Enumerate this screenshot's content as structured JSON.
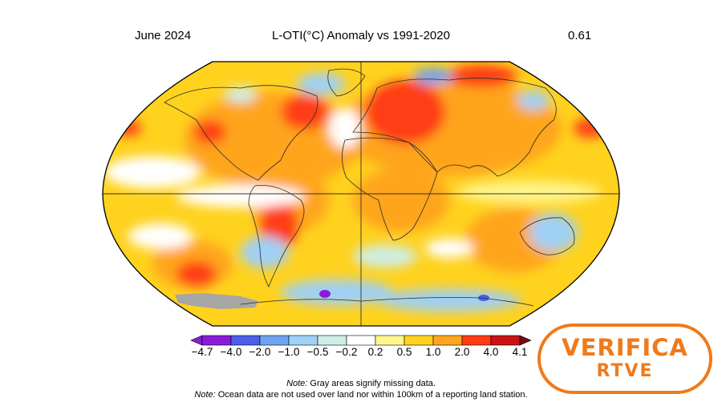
{
  "header": {
    "date": "June 2024",
    "title": "L-OTI(°C) Anomaly vs 1991-2020",
    "global_value": "0.61"
  },
  "colorbar": {
    "labels": [
      "−4.7",
      "−4.0",
      "−2.0",
      "−1.0",
      "−0.5",
      "−0.2",
      "0.2",
      "0.5",
      "1.0",
      "2.0",
      "4.0",
      "4.1"
    ],
    "colors": [
      "#8a1bd8",
      "#4b5fe8",
      "#6ea3f0",
      "#9fd0f5",
      "#cdeee6",
      "#ffffff",
      "#fff58c",
      "#ffd21e",
      "#ffa51e",
      "#ff3c14",
      "#c81414"
    ]
  },
  "notes": {
    "note1_label": "Note:",
    "note1_text": " Gray areas signify missing data.",
    "note2_label": "Note:",
    "note2_text": " Ocean data are not used over land nor within 100km of a reporting land station."
  },
  "badge": {
    "line1": "VERIFICA",
    "line2": "RTVE",
    "color": "#f07a1a"
  },
  "map": {
    "projection": "Robinson",
    "missing_data_color": "#a6a6a6"
  }
}
